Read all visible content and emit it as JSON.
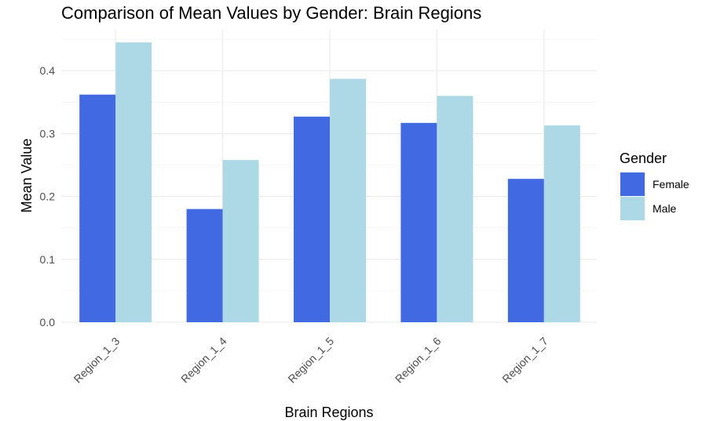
{
  "chart_data": {
    "type": "bar",
    "title": "Comparison of Mean Values by Gender: Brain Regions",
    "xlabel": "Brain Regions",
    "ylabel": "Mean Value",
    "categories": [
      "Region_1_3",
      "Region_1_4",
      "Region_1_5",
      "Region_1_6",
      "Region_1_7"
    ],
    "series": [
      {
        "name": "Female",
        "color": "#4169E1",
        "values": [
          0.362,
          0.18,
          0.327,
          0.317,
          0.228
        ]
      },
      {
        "name": "Male",
        "color": "#ADD8E6",
        "values": [
          0.445,
          0.258,
          0.387,
          0.36,
          0.313
        ]
      }
    ],
    "ylim": [
      0,
      0.45
    ],
    "yticks": [
      "0.0",
      "0.1",
      "0.2",
      "0.3",
      "0.4"
    ],
    "legend": {
      "title": "Gender",
      "position": "right"
    },
    "grid": true
  }
}
